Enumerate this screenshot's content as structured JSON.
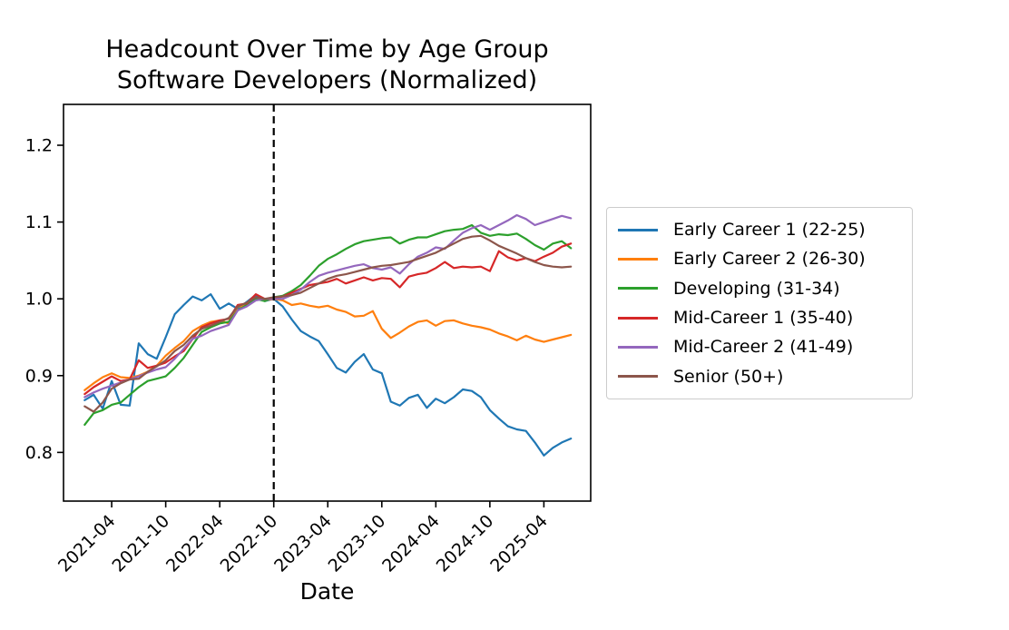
{
  "chart_data": {
    "type": "line",
    "title_line1": "Headcount Over Time by Age Group",
    "title_line2": "Software Developers (Normalized)",
    "xlabel": "Date",
    "grid": false,
    "legend_position": "right",
    "background_color": "#ffffff",
    "axis_color": "#000000",
    "ylim": [
      0.7366,
      1.2532
    ],
    "xlim_index": [
      -2.35,
      56.2
    ],
    "yticks": [
      0.8,
      0.9,
      1.0,
      1.1,
      1.2
    ],
    "ytick_labels": [
      "0.8",
      "0.9",
      "1.0",
      "1.1",
      "1.2"
    ],
    "xtick_indices": [
      3,
      9,
      15,
      21,
      27,
      33,
      39,
      45,
      51
    ],
    "xtick_labels": [
      "2021-04",
      "2021-10",
      "2022-04",
      "2022-10",
      "2023-04",
      "2023-10",
      "2024-04",
      "2024-10",
      "2025-04"
    ],
    "vline": {
      "date": "2022-10",
      "index": 21,
      "style": "dashed",
      "color": "#000000"
    },
    "x": [
      "2021-01",
      "2021-02",
      "2021-03",
      "2021-04",
      "2021-05",
      "2021-06",
      "2021-07",
      "2021-08",
      "2021-09",
      "2021-10",
      "2021-11",
      "2021-12",
      "2022-01",
      "2022-02",
      "2022-03",
      "2022-04",
      "2022-05",
      "2022-06",
      "2022-07",
      "2022-08",
      "2022-09",
      "2022-10",
      "2022-11",
      "2022-12",
      "2023-01",
      "2023-02",
      "2023-03",
      "2023-04",
      "2023-05",
      "2023-06",
      "2023-07",
      "2023-08",
      "2023-09",
      "2023-10",
      "2023-11",
      "2023-12",
      "2024-01",
      "2024-02",
      "2024-03",
      "2024-04",
      "2024-05",
      "2024-06",
      "2024-07",
      "2024-08",
      "2024-09",
      "2024-10",
      "2024-11",
      "2024-12",
      "2025-01",
      "2025-02",
      "2025-03",
      "2025-04",
      "2025-05",
      "2025-06",
      "2025-07"
    ],
    "series": [
      {
        "name": "Early Career 1 (22-25)",
        "color": "#1f77b4",
        "values": [
          0.868,
          0.875,
          0.857,
          0.893,
          0.862,
          0.861,
          0.942,
          0.928,
          0.922,
          0.95,
          0.98,
          0.992,
          1.003,
          0.998,
          1.006,
          0.987,
          0.994,
          0.987,
          0.996,
          1.005,
          0.997,
          1.0,
          0.99,
          0.973,
          0.958,
          0.951,
          0.945,
          0.928,
          0.91,
          0.904,
          0.918,
          0.928,
          0.908,
          0.903,
          0.866,
          0.861,
          0.871,
          0.875,
          0.858,
          0.87,
          0.864,
          0.872,
          0.882,
          0.88,
          0.872,
          0.855,
          0.844,
          0.834,
          0.83,
          0.828,
          0.813,
          0.796,
          0.806,
          0.813,
          0.818
        ]
      },
      {
        "name": "Early Career 2 (26-30)",
        "color": "#ff7f0e",
        "values": [
          0.881,
          0.89,
          0.898,
          0.903,
          0.898,
          0.897,
          0.9,
          0.905,
          0.913,
          0.926,
          0.936,
          0.945,
          0.958,
          0.965,
          0.97,
          0.972,
          0.968,
          0.99,
          0.991,
          1.002,
          0.998,
          1.0,
          0.998,
          0.992,
          0.994,
          0.991,
          0.989,
          0.991,
          0.986,
          0.983,
          0.977,
          0.978,
          0.984,
          0.961,
          0.949,
          0.956,
          0.964,
          0.97,
          0.972,
          0.965,
          0.971,
          0.972,
          0.968,
          0.965,
          0.963,
          0.96,
          0.955,
          0.951,
          0.946,
          0.952,
          0.947,
          0.944,
          0.947,
          0.95,
          0.953
        ]
      },
      {
        "name": "Developing (31-34)",
        "color": "#2ca02c",
        "values": [
          0.836,
          0.851,
          0.855,
          0.862,
          0.865,
          0.875,
          0.885,
          0.893,
          0.896,
          0.899,
          0.91,
          0.923,
          0.94,
          0.957,
          0.963,
          0.968,
          0.97,
          0.985,
          0.992,
          1.0,
          0.997,
          1.002,
          1.004,
          1.01,
          1.018,
          1.03,
          1.043,
          1.052,
          1.058,
          1.065,
          1.071,
          1.075,
          1.077,
          1.079,
          1.08,
          1.072,
          1.077,
          1.08,
          1.08,
          1.084,
          1.088,
          1.09,
          1.091,
          1.096,
          1.086,
          1.082,
          1.084,
          1.083,
          1.085,
          1.078,
          1.07,
          1.064,
          1.072,
          1.075,
          1.066
        ]
      },
      {
        "name": "Mid-Career 1 (35-40)",
        "color": "#d62728",
        "values": [
          0.876,
          0.885,
          0.892,
          0.899,
          0.893,
          0.895,
          0.92,
          0.91,
          0.913,
          0.917,
          0.925,
          0.932,
          0.948,
          0.963,
          0.968,
          0.972,
          0.974,
          0.992,
          0.994,
          1.006,
          1.0,
          1.0,
          1.003,
          1.008,
          1.013,
          1.018,
          1.02,
          1.022,
          1.026,
          1.02,
          1.024,
          1.028,
          1.024,
          1.027,
          1.026,
          1.015,
          1.029,
          1.032,
          1.034,
          1.04,
          1.048,
          1.04,
          1.042,
          1.041,
          1.042,
          1.036,
          1.062,
          1.054,
          1.05,
          1.053,
          1.049,
          1.055,
          1.06,
          1.068,
          1.072
        ]
      },
      {
        "name": "Mid-Career 2 (41-49)",
        "color": "#9467bd",
        "values": [
          0.872,
          0.878,
          0.883,
          0.887,
          0.891,
          0.895,
          0.899,
          0.904,
          0.908,
          0.911,
          0.922,
          0.935,
          0.948,
          0.952,
          0.958,
          0.962,
          0.966,
          0.985,
          0.99,
          0.998,
          1.0,
          1.0,
          1.0,
          1.005,
          1.012,
          1.022,
          1.03,
          1.034,
          1.037,
          1.04,
          1.043,
          1.045,
          1.04,
          1.038,
          1.041,
          1.033,
          1.045,
          1.055,
          1.06,
          1.067,
          1.065,
          1.076,
          1.086,
          1.092,
          1.096,
          1.09,
          1.096,
          1.102,
          1.109,
          1.104,
          1.096,
          1.1,
          1.104,
          1.108,
          1.105
        ]
      },
      {
        "name": "Senior (50+)",
        "color": "#8c564b",
        "values": [
          0.86,
          0.853,
          0.865,
          0.883,
          0.89,
          0.895,
          0.896,
          0.905,
          0.912,
          0.92,
          0.932,
          0.94,
          0.952,
          0.961,
          0.965,
          0.97,
          0.975,
          0.99,
          0.995,
          1.002,
          1.0,
          1.002,
          1.003,
          1.005,
          1.008,
          1.014,
          1.02,
          1.026,
          1.03,
          1.032,
          1.035,
          1.038,
          1.041,
          1.043,
          1.044,
          1.046,
          1.048,
          1.052,
          1.056,
          1.06,
          1.066,
          1.072,
          1.078,
          1.081,
          1.082,
          1.076,
          1.069,
          1.064,
          1.059,
          1.053,
          1.048,
          1.044,
          1.042,
          1.041,
          1.042
        ]
      }
    ]
  }
}
